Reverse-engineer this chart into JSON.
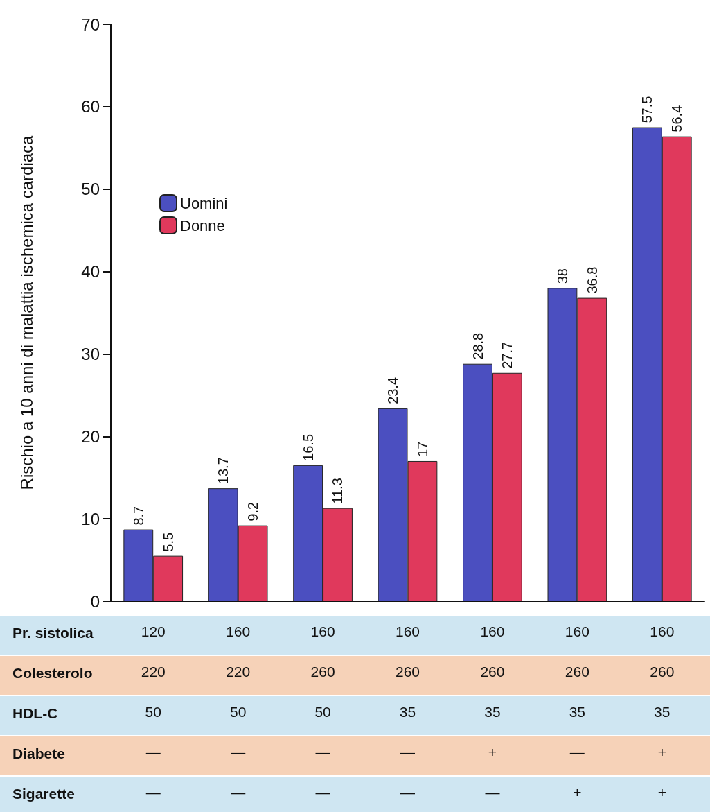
{
  "chart_data": {
    "type": "bar",
    "ylabel": "Rischio a 10 anni di malattia ischemica cardiaca",
    "categories": [
      "120\n220\n50\n—\n—",
      "160\n220\n50\n—\n—",
      "160\n260\n50\n—\n—",
      "160\n260\n35\n—\n—",
      "160\n260\n35\n+\n—",
      "160\n260\n35\n—\n+",
      "160\n260\n35\n+\n+"
    ],
    "series": [
      {
        "name": "Uomini",
        "color": "#4b4fc0",
        "values": [
          8.7,
          13.7,
          16.5,
          23.4,
          28.8,
          38,
          57.5
        ]
      },
      {
        "name": "Donne",
        "color": "#e0395c",
        "values": [
          5.5,
          9.2,
          11.3,
          17,
          27.7,
          36.8,
          56.4
        ]
      }
    ],
    "annotations": [
      "Pr. sistolica",
      "Colesterolo",
      "HDL-C",
      "Diabete",
      "Sigarette"
    ],
    "ylim": [
      0,
      70
    ],
    "yticks": [
      0,
      10,
      20,
      30,
      40,
      50,
      60,
      70
    ],
    "data_labels": true,
    "legend": "top left",
    "grid": false
  }
}
